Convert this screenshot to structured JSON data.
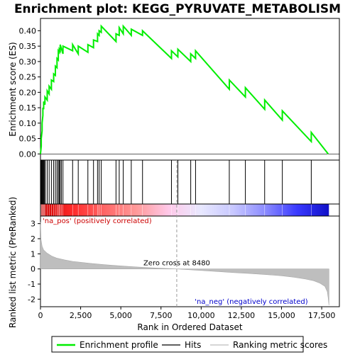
{
  "chart_data": {
    "type": "line",
    "title": "Enrichment plot: KEGG_PYRUVATE_METABOLISM",
    "top_panel": {
      "ylabel": "Enrichment score (ES)",
      "ylim": [
        -0.02,
        0.44
      ],
      "yticks": [
        0.0,
        0.05,
        0.1,
        0.15,
        0.2,
        0.25,
        0.3,
        0.35,
        0.4
      ],
      "ytick_labels": [
        "0.00",
        "0.05",
        "0.10",
        "0.15",
        "0.20",
        "0.25",
        "0.30",
        "0.35",
        "0.40"
      ],
      "series": [
        {
          "name": "Enrichment profile",
          "color": "#00ee00",
          "x": [
            0,
            50,
            50,
            100,
            100,
            150,
            150,
            200,
            200,
            280,
            280,
            420,
            420,
            540,
            540,
            680,
            680,
            820,
            820,
            930,
            930,
            1030,
            1030,
            1110,
            1110,
            1170,
            1170,
            1230,
            1230,
            1400,
            1400,
            2000,
            2000,
            2350,
            2350,
            2950,
            2950,
            3300,
            3300,
            3550,
            3550,
            3650,
            3650,
            3780,
            3780,
            4700,
            4700,
            4900,
            4900,
            5150,
            5150,
            5650,
            5650,
            6350,
            6350,
            8150,
            8150,
            8550,
            8550,
            9350,
            9350,
            9650,
            9650,
            11750,
            11750,
            12750,
            12750,
            13950,
            13950,
            15050,
            15050,
            16850,
            16850,
            17900
          ],
          "y": [
            0.0,
            0.025,
            0.05,
            0.075,
            0.1,
            0.125,
            0.15,
            0.145,
            0.17,
            0.16,
            0.185,
            0.175,
            0.205,
            0.195,
            0.22,
            0.21,
            0.24,
            0.235,
            0.26,
            0.255,
            0.285,
            0.28,
            0.31,
            0.305,
            0.335,
            0.33,
            0.34,
            0.335,
            0.355,
            0.325,
            0.35,
            0.335,
            0.355,
            0.325,
            0.35,
            0.33,
            0.355,
            0.345,
            0.37,
            0.365,
            0.39,
            0.385,
            0.4,
            0.395,
            0.415,
            0.365,
            0.39,
            0.385,
            0.41,
            0.39,
            0.415,
            0.385,
            0.405,
            0.385,
            0.4,
            0.31,
            0.335,
            0.315,
            0.34,
            0.3,
            0.325,
            0.31,
            0.335,
            0.21,
            0.24,
            0.185,
            0.215,
            0.145,
            0.175,
            0.11,
            0.14,
            0.04,
            0.07,
            0.0
          ]
        }
      ]
    },
    "hits_panel": {
      "hit_positions": [
        30,
        70,
        110,
        150,
        200,
        250,
        300,
        420,
        540,
        680,
        820,
        930,
        1030,
        1110,
        1170,
        1230,
        1300,
        1400,
        2000,
        2350,
        2950,
        3300,
        3550,
        3650,
        3780,
        4700,
        4900,
        5150,
        5650,
        6350,
        8150,
        8550,
        9350,
        9650,
        11750,
        12750,
        13950,
        15050,
        16850
      ],
      "color_band": [
        "#cc0000",
        "#ff2a2a",
        "#ff6666",
        "#ff9a9a",
        "#ffc8e8",
        "#e8e8ff",
        "#c8c8ff",
        "#8c8cff",
        "#3a3aff",
        "#1010c8"
      ]
    },
    "bottom_panel": {
      "ylabel": "Ranked list metric (PreRanked)",
      "xlabel": "Rank in Ordered Dataset",
      "ylim": [
        -2.5,
        3.5
      ],
      "yticks": [
        -2,
        -1,
        0,
        1,
        2,
        3
      ],
      "ytick_labels": [
        "-2",
        "-1",
        "0",
        "1",
        "2",
        "3"
      ],
      "xlim": [
        0,
        18600
      ],
      "xticks": [
        0,
        2500,
        5000,
        7500,
        10000,
        12500,
        15000,
        17500
      ],
      "xtick_labels": [
        "0",
        "2,500",
        "5,000",
        "7,500",
        "10,000",
        "12,500",
        "15,000",
        "17,500"
      ],
      "metric_x": [
        0,
        40,
        100,
        200,
        400,
        700,
        1000,
        1500,
        2000,
        3000,
        4000,
        5000,
        6000,
        7000,
        8000,
        8480,
        9000,
        10000,
        11000,
        12000,
        13000,
        14000,
        15000,
        15800,
        16500,
        17000,
        17400,
        17700,
        17850,
        17900,
        17950
      ],
      "metric_y": [
        3.1,
        1.9,
        1.5,
        1.25,
        1.05,
        0.85,
        0.72,
        0.6,
        0.5,
        0.38,
        0.28,
        0.2,
        0.13,
        0.07,
        0.02,
        0.0,
        -0.04,
        -0.1,
        -0.17,
        -0.24,
        -0.3,
        -0.37,
        -0.45,
        -0.55,
        -0.67,
        -0.78,
        -0.95,
        -1.15,
        -1.5,
        -1.9,
        -2.4
      ],
      "fill_color": "#bebebe",
      "zero_cross": 8480,
      "zero_cross_label": "Zero cross at 8480",
      "pos_label": "'na_pos' (positively correlated)",
      "neg_label": "'na_neg' (negatively correlated)",
      "pos_color": "#cc0000",
      "neg_color": "#0000cc"
    },
    "legend": {
      "placement": "bottom",
      "items": [
        {
          "name": "Enrichment profile",
          "color": "#00ee00",
          "kind": "line"
        },
        {
          "name": "Hits",
          "color": "#000000",
          "kind": "line"
        },
        {
          "name": "Ranking metric scores",
          "color": "#bebebe",
          "kind": "line"
        }
      ]
    }
  }
}
